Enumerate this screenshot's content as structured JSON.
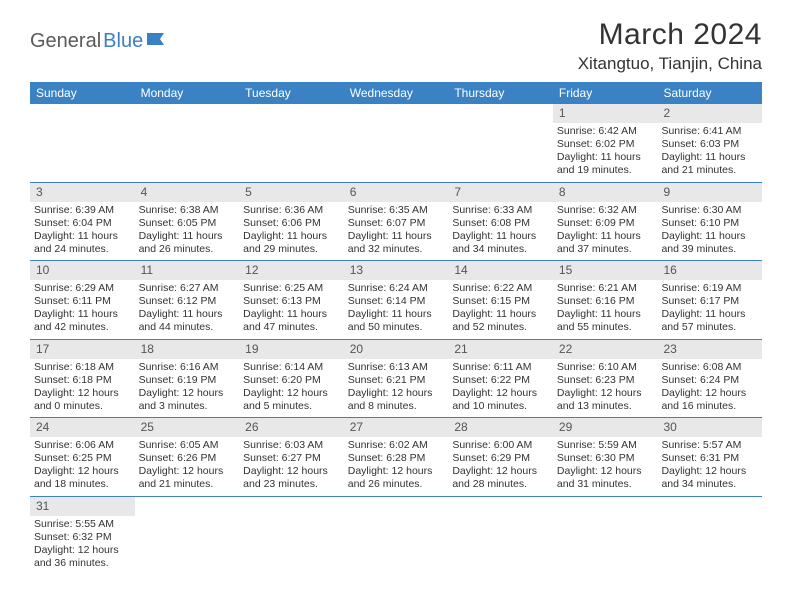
{
  "logo": {
    "text_gray": "General",
    "text_blue": "Blue"
  },
  "title": "March 2024",
  "location": "Xitangtuo, Tianjin, China",
  "colors": {
    "header_bg": "#3b82c4",
    "header_text": "#ffffff",
    "daynum_bg": "#e8e8e8",
    "body_text": "#333333",
    "week_divider": "#3b82c4"
  },
  "typography": {
    "title_fontsize": 30,
    "location_fontsize": 17,
    "weekday_fontsize": 12,
    "daynum_fontsize": 12,
    "cell_fontsize": 10.5
  },
  "weekdays": [
    "Sunday",
    "Monday",
    "Tuesday",
    "Wednesday",
    "Thursday",
    "Friday",
    "Saturday"
  ],
  "weeks": [
    [
      null,
      null,
      null,
      null,
      null,
      {
        "n": "1",
        "sr": "Sunrise: 6:42 AM",
        "ss": "Sunset: 6:02 PM",
        "d1": "Daylight: 11 hours",
        "d2": "and 19 minutes."
      },
      {
        "n": "2",
        "sr": "Sunrise: 6:41 AM",
        "ss": "Sunset: 6:03 PM",
        "d1": "Daylight: 11 hours",
        "d2": "and 21 minutes."
      }
    ],
    [
      {
        "n": "3",
        "sr": "Sunrise: 6:39 AM",
        "ss": "Sunset: 6:04 PM",
        "d1": "Daylight: 11 hours",
        "d2": "and 24 minutes."
      },
      {
        "n": "4",
        "sr": "Sunrise: 6:38 AM",
        "ss": "Sunset: 6:05 PM",
        "d1": "Daylight: 11 hours",
        "d2": "and 26 minutes."
      },
      {
        "n": "5",
        "sr": "Sunrise: 6:36 AM",
        "ss": "Sunset: 6:06 PM",
        "d1": "Daylight: 11 hours",
        "d2": "and 29 minutes."
      },
      {
        "n": "6",
        "sr": "Sunrise: 6:35 AM",
        "ss": "Sunset: 6:07 PM",
        "d1": "Daylight: 11 hours",
        "d2": "and 32 minutes."
      },
      {
        "n": "7",
        "sr": "Sunrise: 6:33 AM",
        "ss": "Sunset: 6:08 PM",
        "d1": "Daylight: 11 hours",
        "d2": "and 34 minutes."
      },
      {
        "n": "8",
        "sr": "Sunrise: 6:32 AM",
        "ss": "Sunset: 6:09 PM",
        "d1": "Daylight: 11 hours",
        "d2": "and 37 minutes."
      },
      {
        "n": "9",
        "sr": "Sunrise: 6:30 AM",
        "ss": "Sunset: 6:10 PM",
        "d1": "Daylight: 11 hours",
        "d2": "and 39 minutes."
      }
    ],
    [
      {
        "n": "10",
        "sr": "Sunrise: 6:29 AM",
        "ss": "Sunset: 6:11 PM",
        "d1": "Daylight: 11 hours",
        "d2": "and 42 minutes."
      },
      {
        "n": "11",
        "sr": "Sunrise: 6:27 AM",
        "ss": "Sunset: 6:12 PM",
        "d1": "Daylight: 11 hours",
        "d2": "and 44 minutes."
      },
      {
        "n": "12",
        "sr": "Sunrise: 6:25 AM",
        "ss": "Sunset: 6:13 PM",
        "d1": "Daylight: 11 hours",
        "d2": "and 47 minutes."
      },
      {
        "n": "13",
        "sr": "Sunrise: 6:24 AM",
        "ss": "Sunset: 6:14 PM",
        "d1": "Daylight: 11 hours",
        "d2": "and 50 minutes."
      },
      {
        "n": "14",
        "sr": "Sunrise: 6:22 AM",
        "ss": "Sunset: 6:15 PM",
        "d1": "Daylight: 11 hours",
        "d2": "and 52 minutes."
      },
      {
        "n": "15",
        "sr": "Sunrise: 6:21 AM",
        "ss": "Sunset: 6:16 PM",
        "d1": "Daylight: 11 hours",
        "d2": "and 55 minutes."
      },
      {
        "n": "16",
        "sr": "Sunrise: 6:19 AM",
        "ss": "Sunset: 6:17 PM",
        "d1": "Daylight: 11 hours",
        "d2": "and 57 minutes."
      }
    ],
    [
      {
        "n": "17",
        "sr": "Sunrise: 6:18 AM",
        "ss": "Sunset: 6:18 PM",
        "d1": "Daylight: 12 hours",
        "d2": "and 0 minutes."
      },
      {
        "n": "18",
        "sr": "Sunrise: 6:16 AM",
        "ss": "Sunset: 6:19 PM",
        "d1": "Daylight: 12 hours",
        "d2": "and 3 minutes."
      },
      {
        "n": "19",
        "sr": "Sunrise: 6:14 AM",
        "ss": "Sunset: 6:20 PM",
        "d1": "Daylight: 12 hours",
        "d2": "and 5 minutes."
      },
      {
        "n": "20",
        "sr": "Sunrise: 6:13 AM",
        "ss": "Sunset: 6:21 PM",
        "d1": "Daylight: 12 hours",
        "d2": "and 8 minutes."
      },
      {
        "n": "21",
        "sr": "Sunrise: 6:11 AM",
        "ss": "Sunset: 6:22 PM",
        "d1": "Daylight: 12 hours",
        "d2": "and 10 minutes."
      },
      {
        "n": "22",
        "sr": "Sunrise: 6:10 AM",
        "ss": "Sunset: 6:23 PM",
        "d1": "Daylight: 12 hours",
        "d2": "and 13 minutes."
      },
      {
        "n": "23",
        "sr": "Sunrise: 6:08 AM",
        "ss": "Sunset: 6:24 PM",
        "d1": "Daylight: 12 hours",
        "d2": "and 16 minutes."
      }
    ],
    [
      {
        "n": "24",
        "sr": "Sunrise: 6:06 AM",
        "ss": "Sunset: 6:25 PM",
        "d1": "Daylight: 12 hours",
        "d2": "and 18 minutes."
      },
      {
        "n": "25",
        "sr": "Sunrise: 6:05 AM",
        "ss": "Sunset: 6:26 PM",
        "d1": "Daylight: 12 hours",
        "d2": "and 21 minutes."
      },
      {
        "n": "26",
        "sr": "Sunrise: 6:03 AM",
        "ss": "Sunset: 6:27 PM",
        "d1": "Daylight: 12 hours",
        "d2": "and 23 minutes."
      },
      {
        "n": "27",
        "sr": "Sunrise: 6:02 AM",
        "ss": "Sunset: 6:28 PM",
        "d1": "Daylight: 12 hours",
        "d2": "and 26 minutes."
      },
      {
        "n": "28",
        "sr": "Sunrise: 6:00 AM",
        "ss": "Sunset: 6:29 PM",
        "d1": "Daylight: 12 hours",
        "d2": "and 28 minutes."
      },
      {
        "n": "29",
        "sr": "Sunrise: 5:59 AM",
        "ss": "Sunset: 6:30 PM",
        "d1": "Daylight: 12 hours",
        "d2": "and 31 minutes."
      },
      {
        "n": "30",
        "sr": "Sunrise: 5:57 AM",
        "ss": "Sunset: 6:31 PM",
        "d1": "Daylight: 12 hours",
        "d2": "and 34 minutes."
      }
    ],
    [
      {
        "n": "31",
        "sr": "Sunrise: 5:55 AM",
        "ss": "Sunset: 6:32 PM",
        "d1": "Daylight: 12 hours",
        "d2": "and 36 minutes."
      },
      null,
      null,
      null,
      null,
      null,
      null
    ]
  ]
}
